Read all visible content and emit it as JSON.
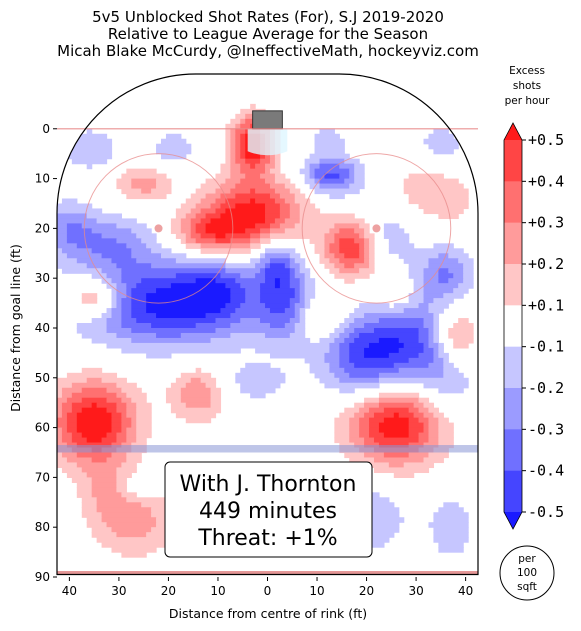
{
  "title_lines": [
    "5v5 Unblocked Shot Rates (For), S.J 2019-2020",
    "Relative to League Average for the Season",
    "Micah Blake McCurdy, @IneffectiveMath, hockeyviz.com"
  ],
  "info_box": {
    "line1": "With J. Thornton",
    "line2": "449 minutes",
    "line3": "Threat: +1%"
  },
  "badge": {
    "line1": "per",
    "line2": "100",
    "line3": "sqft"
  },
  "colorbar": {
    "title_lines": [
      "Excess",
      "shots",
      "per hour"
    ],
    "labels": [
      "+0.5",
      "+0.4",
      "+0.3",
      "+0.2",
      "+0.1",
      "-0.1",
      "-0.2",
      "-0.3",
      "-0.4",
      "-0.5"
    ],
    "colors": [
      "#ff1a1a",
      "#ff4545",
      "#ff7070",
      "#ff9b9b",
      "#ffc6c6",
      "#ffffff",
      "#c6c6ff",
      "#9b9bff",
      "#7070ff",
      "#4545ff",
      "#1a1aff"
    ]
  },
  "chart_data": {
    "type": "heatmap",
    "xlabel": "Distance from centre of rink (ft)",
    "ylabel": "Distance from goal line (ft)",
    "xlim": [
      42.5,
      -42.5
    ],
    "ylim": [
      90,
      -11
    ],
    "x_ticks": [
      40,
      30,
      20,
      10,
      0,
      10,
      20,
      30,
      40
    ],
    "y_ticks": [
      0,
      10,
      20,
      30,
      40,
      50,
      60,
      70,
      80,
      90
    ],
    "units": "excess shots per hour per 100 sqft",
    "levels": [
      -0.5,
      -0.4,
      -0.3,
      -0.2,
      -0.1,
      0.1,
      0.2,
      0.3,
      0.4,
      0.5
    ],
    "blobs": [
      {
        "x": 3,
        "y": 3,
        "amp": 0.6,
        "sx": 3,
        "sy": 4
      },
      {
        "x": 3,
        "y": 17,
        "amp": 0.55,
        "sx": 7,
        "sy": 5
      },
      {
        "x": 12,
        "y": 21,
        "amp": 0.35,
        "sx": 5,
        "sy": 3
      },
      {
        "x": -17,
        "y": 24,
        "amp": 0.5,
        "sx": 4,
        "sy": 4
      },
      {
        "x": -2,
        "y": 27,
        "amp": -0.35,
        "sx": 3,
        "sy": 4
      },
      {
        "x": -12,
        "y": 9,
        "amp": -0.25,
        "sx": 4,
        "sy": 2.5
      },
      {
        "x": 20,
        "y": 35,
        "amp": -0.55,
        "sx": 13,
        "sy": 6
      },
      {
        "x": 31,
        "y": 23,
        "amp": -0.25,
        "sx": 6,
        "sy": 4
      },
      {
        "x": 40,
        "y": 20,
        "amp": -0.25,
        "sx": 4,
        "sy": 4
      },
      {
        "x": 35,
        "y": 34,
        "amp": 0.4,
        "sx": 4,
        "sy": 3
      },
      {
        "x": 25,
        "y": 11,
        "amp": 0.25,
        "sx": 4,
        "sy": 2.5
      },
      {
        "x": -20,
        "y": 46,
        "amp": -0.5,
        "sx": 6,
        "sy": 6
      },
      {
        "x": -29,
        "y": 41,
        "amp": -0.3,
        "sx": 5,
        "sy": 6
      },
      {
        "x": -4,
        "y": 36,
        "amp": -0.35,
        "sx": 4,
        "sy": 5
      },
      {
        "x": 3,
        "y": 51,
        "amp": -0.15,
        "sx": 6,
        "sy": 3
      },
      {
        "x": -26,
        "y": 59,
        "amp": 0.6,
        "sx": 7,
        "sy": 6
      },
      {
        "x": 35,
        "y": 59,
        "amp": 0.6,
        "sx": 6,
        "sy": 6
      },
      {
        "x": 14,
        "y": 53,
        "amp": 0.3,
        "sx": 4,
        "sy": 4
      },
      {
        "x": 10,
        "y": 32,
        "amp": -0.2,
        "sx": 5,
        "sy": 4
      },
      {
        "x": -35,
        "y": 50,
        "amp": -0.25,
        "sx": 5,
        "sy": 6
      },
      {
        "x": -36,
        "y": 29,
        "amp": -0.3,
        "sx": 4,
        "sy": 4
      },
      {
        "x": -14,
        "y": 10,
        "amp": -0.2,
        "sx": 4,
        "sy": 3
      },
      {
        "x": -37,
        "y": 14,
        "amp": 0.15,
        "sx": 4,
        "sy": 4
      },
      {
        "x": -38,
        "y": 42,
        "amp": 0.3,
        "sx": 3,
        "sy": 4
      },
      {
        "x": 27,
        "y": 79,
        "amp": 0.25,
        "sx": 6,
        "sy": 5
      },
      {
        "x": 32,
        "y": 73,
        "amp": 0.15,
        "sx": 4,
        "sy": 4
      },
      {
        "x": 27,
        "y": 72,
        "amp": -0.15,
        "sx": 2.5,
        "sy": 2
      },
      {
        "x": -21,
        "y": 78,
        "amp": -0.2,
        "sx": 5,
        "sy": 5
      },
      {
        "x": -37,
        "y": 80,
        "amp": -0.15,
        "sx": 4,
        "sy": 6
      },
      {
        "x": 5,
        "y": 80,
        "amp": -0.1,
        "sx": 4,
        "sy": 4
      },
      {
        "x": 36,
        "y": 4,
        "amp": -0.2,
        "sx": 4,
        "sy": 3
      },
      {
        "x": 19,
        "y": 4,
        "amp": -0.15,
        "sx": 4,
        "sy": 3
      },
      {
        "x": -12,
        "y": 2,
        "amp": -0.15,
        "sx": 3,
        "sy": 2
      },
      {
        "x": -35,
        "y": 3,
        "amp": -0.15,
        "sx": 4,
        "sy": 3
      },
      {
        "x": -24,
        "y": 22,
        "amp": -0.2,
        "sx": 4,
        "sy": 4
      },
      {
        "x": -30,
        "y": 12,
        "amp": 0.12,
        "sx": 4,
        "sy": 4
      },
      {
        "x": -10,
        "y": 38,
        "amp": 0.25,
        "sx": 4,
        "sy": 3
      },
      {
        "x": -26,
        "y": 34,
        "amp": 0.15,
        "sx": 3,
        "sy": 3
      }
    ]
  }
}
